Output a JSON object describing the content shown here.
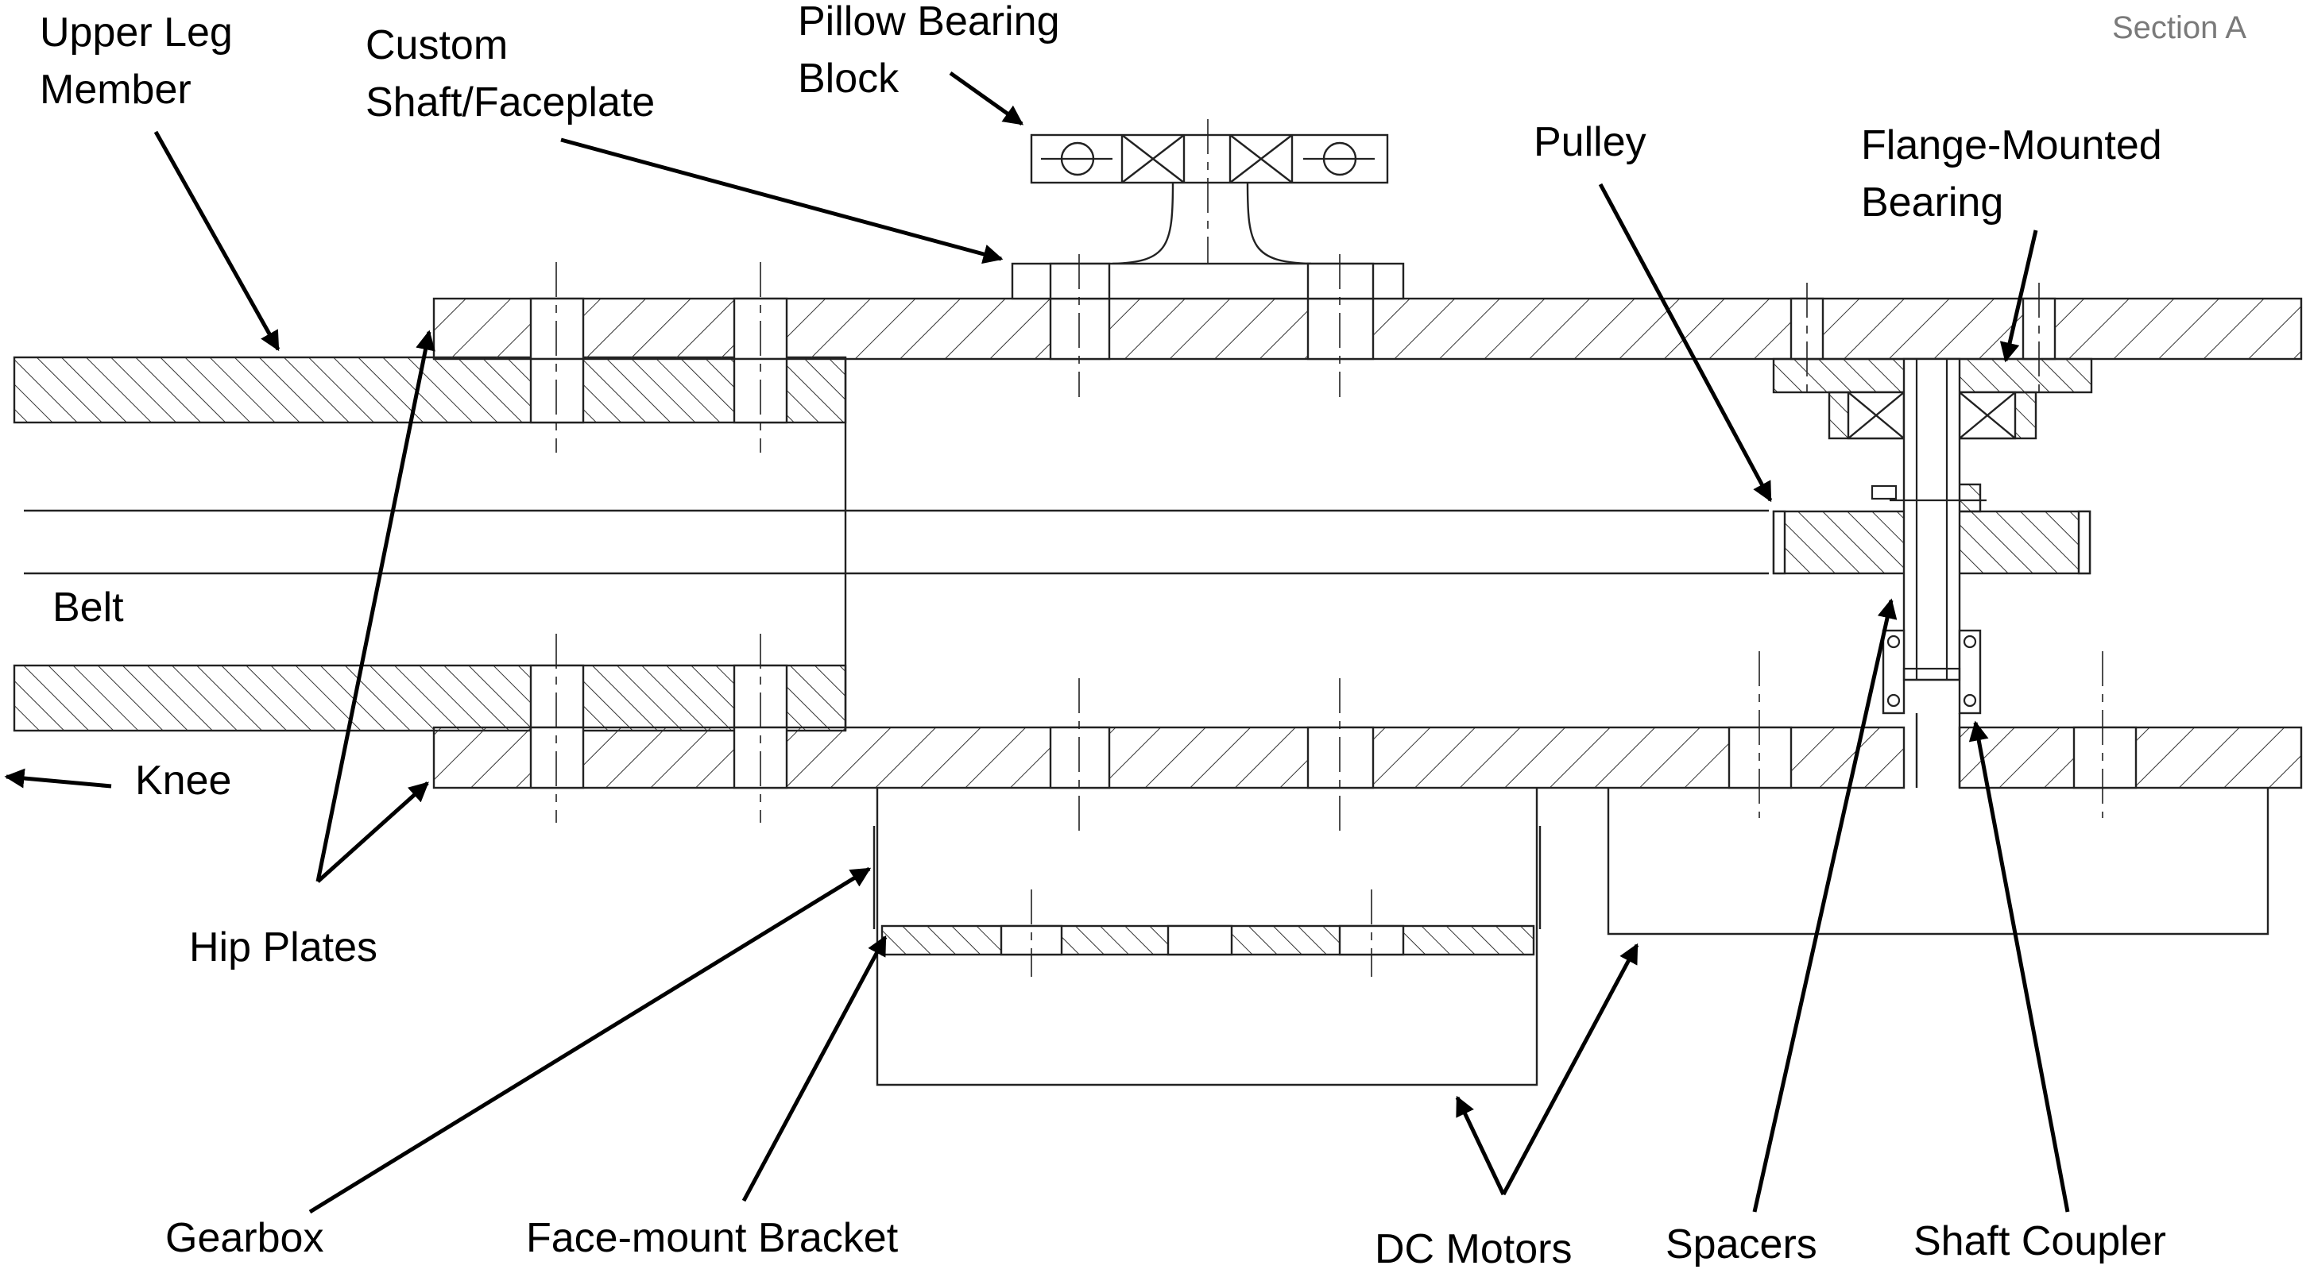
{
  "section_label": "Section A",
  "labels": {
    "upper_leg_1": "Upper Leg",
    "upper_leg_2": "Member",
    "custom_shaft_1": "Custom",
    "custom_shaft_2": "Shaft/Faceplate",
    "pillow_1": "Pillow Bearing",
    "pillow_2": "Block",
    "pulley": "Pulley",
    "flange_1": "Flange-Mounted",
    "flange_2": "Bearing",
    "belt": "Belt",
    "knee": "Knee",
    "hip_plates": "Hip Plates",
    "gearbox": "Gearbox",
    "face_mount": "Face-mount Bracket",
    "dc_motors": "DC Motors",
    "spacers": "Spacers",
    "shaft_coupler": "Shaft Coupler"
  },
  "colors": {
    "line": "#222222",
    "label": "#000000",
    "section_label": "#7a7a7a"
  }
}
